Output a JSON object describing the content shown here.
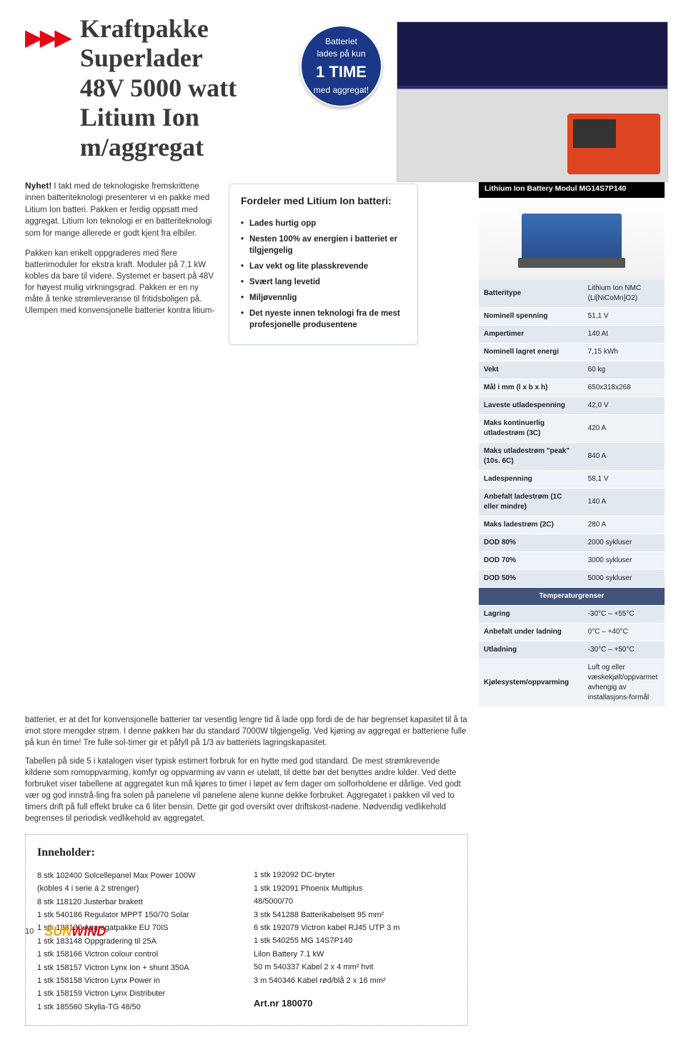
{
  "title": {
    "l1": "Kraftpakke",
    "l2": "Superlader",
    "l3": "48V 5000 watt",
    "l4": "Litium Ion",
    "l5": "m/aggregat"
  },
  "badge": {
    "l1": "Batteriet",
    "l2": "lades på kun",
    "big": "1 TIME",
    "l3": "med aggregat!"
  },
  "nyhet": "Nyhet!",
  "intro1": "I takt med de teknologiske fremskrittene innen batteriteknologi presenterer vi en pakke med Litium Ion batteri. Pakken er ferdig oppsatt med aggregat. Litium Ion teknologi er en batteriteknologi som for mange allerede er godt kjent fra elbiler.",
  "intro2": "Pakken kan enkelt oppgraderes med flere batterimoduler for ekstra kraft. Moduler på 7,1 kW kobles da bare til videre. Systemet er basert på 48V for høyest mulig virkningsgrad. Pakken er en ny måte å tenke strømleveranse til fritidsboligen på. Ulempen med konvensjonelle batterier kontra litium-",
  "fordeler": {
    "title": "Fordeler med Litium Ion batteri:",
    "items": [
      "Lades hurtig opp",
      "Nesten 100% av energien i batteriet er tilgjengelig",
      "Lav vekt og lite plasskrevende",
      "Svært lang levetid",
      "Miljøvennlig",
      "Det nyeste innen teknologi fra de mest profesjonelle produsentene"
    ]
  },
  "span1": "batterier, er at det for konvensjonelle batterier tar vesentlig lengre tid å lade opp fordi de de har begrenset kapasitet til å ta imot store mengder strøm. I denne pakken har du standard 7000W tilgjengelig. Ved kjøring av aggregat er batteriene fulle på kun én time! Tre fulle sol-timer gir et påfyll på 1/3 av batteriets lagringskapasitet.",
  "span2": "Tabellen på side 5 i katalogen viser typisk estimert forbruk for en hytte med god standard. De mest strømkrevende kildene som romoppvarming, komfyr og oppvarming av vann er utelatt, til dette bør det benyttes andre kilder. Ved dette forbruket viser tabellene at aggregatet kun må kjøres to timer i løpet av fem dager om solforholdene er dårlige. Ved godt vær og god innstrå-ling fra solen på panelene vil panelene alene kunne dekke forbruket. Aggregatet i pakken vil ved to timers drift på full effekt bruke ca 6 liter bensin. Dette gir god oversikt over driftskost-nadene. Nødvendig vedlikehold begrenses til periodisk vedlikehold av aggregatet.",
  "spec": {
    "head": "Lithium Ion Battery Modul MG14S7P140",
    "rows": [
      [
        "Batteritype",
        "Lithium Ion NMC (Li[NiCoMn]O2)"
      ],
      [
        "Nominell spenning",
        "51,1 V"
      ],
      [
        "Ampertimer",
        "140 At"
      ],
      [
        "Nominell lagret energi",
        "7,15 kWh"
      ],
      [
        "Vekt",
        "60 kg"
      ],
      [
        "Mål i mm (l x b x h)",
        "650x318x268"
      ],
      [
        "Laveste utladespenning",
        "42,0 V"
      ],
      [
        "Maks kontinuerlig utladestrøm (3C)",
        "420 A"
      ],
      [
        "Maks utladestrøm \"peak\" (10s. 6C)",
        "840 A"
      ],
      [
        "Ladespenning",
        "58,1 V"
      ],
      [
        "Anbefalt ladestrøm (1C eller mindre)",
        "140 A"
      ],
      [
        "Maks ladestrøm (2C)",
        "280 A"
      ],
      [
        "DOD 80%",
        "2000 sykluser"
      ],
      [
        "DOD 70%",
        "3000 sykluser"
      ],
      [
        "DOD 50%",
        "5000 sykluser"
      ]
    ],
    "temp_header": "Temperaturgrenser",
    "temp_rows": [
      [
        "Lagring",
        "-30°C – +55°C"
      ],
      [
        "Anbefalt under ladning",
        "0°C – +40°C"
      ],
      [
        "Utladning",
        "-30°C – +50°C"
      ],
      [
        "Kjølesystem/oppvarming",
        "Luft og eller væskekjølt/oppvarmet avhengig av installasjons-formål"
      ]
    ]
  },
  "inne": {
    "title": "Inneholder:",
    "col1": [
      "8 stk 102400 Solcellepanel Max Power 100W",
      "(kobles 4 i serie á 2 strenger)",
      "8 stk 118120 Justerbar brakett",
      "1 stk 540186 Regulator MPPT 150/70 Solar",
      "1 stk 183130 Aggregatpakke EU 70IS",
      "1 stk 183148 Oppgradering til 25A",
      "1 stk 158166 Victron colour control",
      "1 stk 158157 Victron Lynx Ion + shunt 350A",
      "1 stk 158158 Victron Lynx Power in",
      "1 stk 158159 Victron Lynx Distributer",
      "1 stk 185560 Skylla-TG 48/50"
    ],
    "col2": [
      "1 stk 192092 DC-bryter",
      "1 stk 192091 Phoenix Multiplus",
      "48/5000/70",
      "3 stk 541288 Batterikabelsett 95 mm²",
      "6 stk 192079 Victron kabel RJ45 UTP 3 m",
      "1 stk 540255 MG 14S7P140",
      "Lilon Battery 7.1 kW",
      "50 m 540337 Kabel 2 x 4 mm² hvit",
      "3 m  540346 Kabel rød/blå 2 x 16 mm²"
    ],
    "artnr": "Art.nr 180070"
  },
  "pagenum": "10",
  "logo": "SUNWIND"
}
